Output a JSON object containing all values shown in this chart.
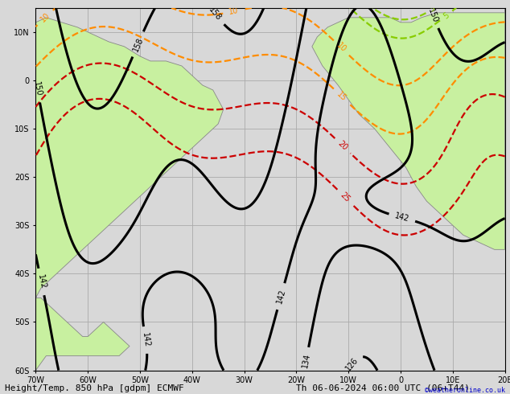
{
  "title": "Height/Temp. 850 hPa [gdpm] ECMWF",
  "datetime_label": "Th 06-06-2024 06:00 UTC (06+T44)",
  "copyright": "©weatheronline.co.uk",
  "bg_land": "#c8f0a0",
  "bg_sea": "#d8d8d8",
  "grid_color": "#aaaaaa",
  "coastline_color": "#888888",
  "xlim": [
    -70,
    20
  ],
  "ylim": [
    -60,
    15
  ],
  "xticks": [
    -70,
    -60,
    -50,
    -40,
    -30,
    -20,
    -10,
    0,
    10,
    20
  ],
  "yticks": [
    -60,
    -50,
    -40,
    -30,
    -20,
    -10,
    0,
    10
  ],
  "xlabel_labels": [
    "70W",
    "60W",
    "50W",
    "40W",
    "30W",
    "20W",
    "10W",
    "0",
    "10E",
    "20E"
  ],
  "ylabel_labels": [
    "60S",
    "50S",
    "40S",
    "30S",
    "20S",
    "10S",
    "0",
    "10N"
  ],
  "black_contour_color": "#000000",
  "black_contour_lw": 2.2,
  "orange_contour_color": "#ff8c00",
  "orange_contour_lw": 1.6,
  "red_contour_color": "#cc0000",
  "red_contour_lw": 1.6,
  "green_contour_color": "#88cc00",
  "green_contour_lw": 1.6,
  "teal_contour_color": "#00aa88",
  "teal_contour_lw": 1.8,
  "cyan_contour_color": "#00bbdd",
  "cyan_contour_lw": 1.8,
  "footer_fontsize": 8,
  "label_fontsize": 7,
  "contour_label_fontsize": 7
}
